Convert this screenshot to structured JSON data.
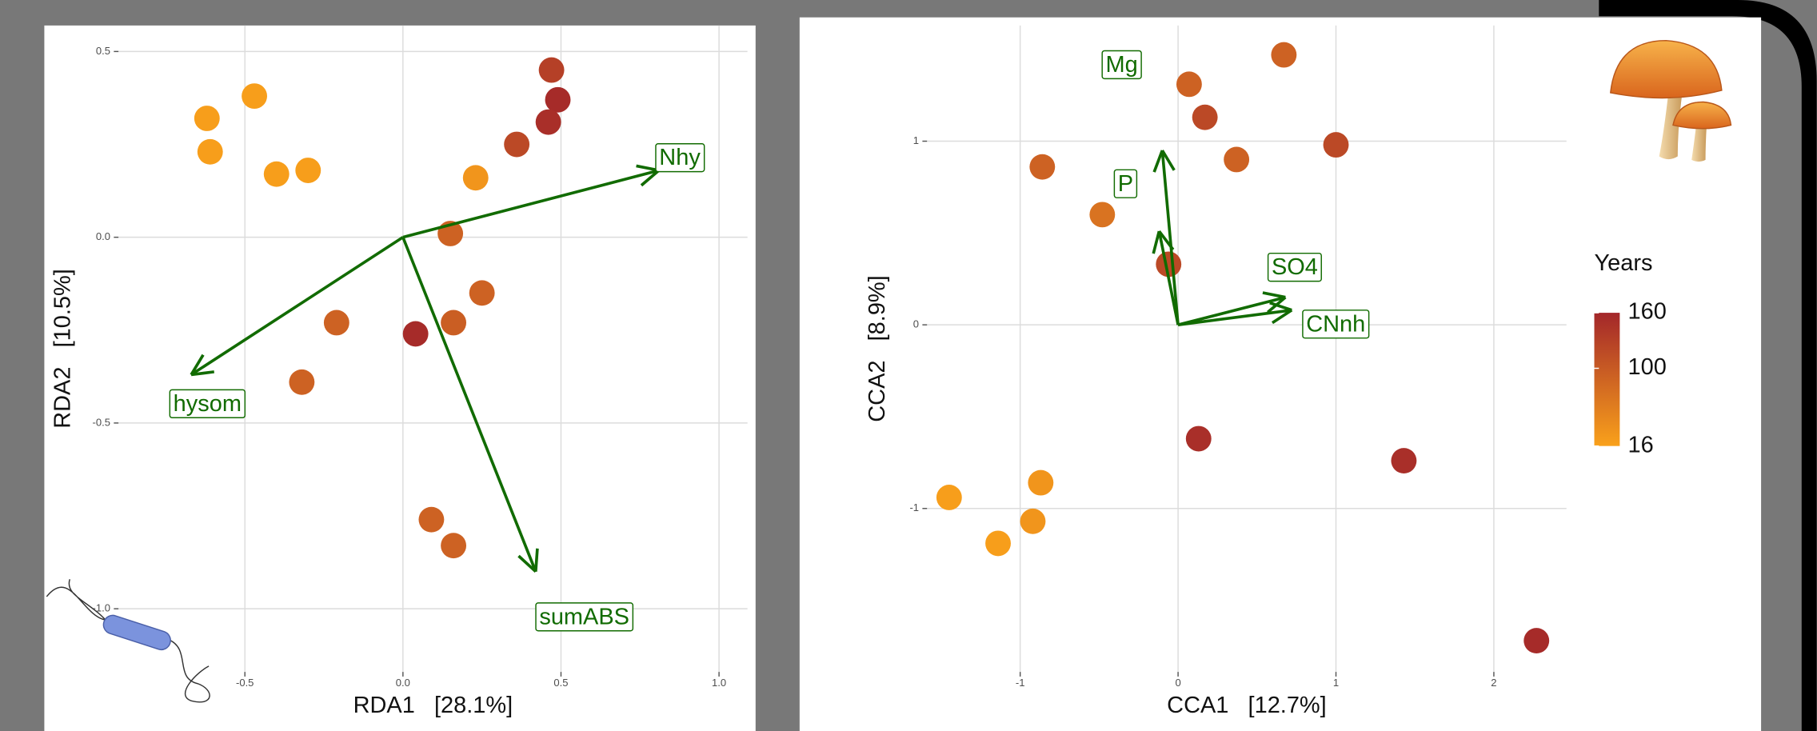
{
  "chart_data": [
    {
      "type": "scatter",
      "x_label": "RDA1   [28.1%]",
      "y_label": "RDA2   [10.5%]",
      "x": [
        -0.62,
        -0.61,
        -0.47,
        -0.4,
        -0.3,
        0.47,
        0.49,
        0.46,
        0.36,
        0.23,
        0.15,
        0.25,
        -0.21,
        0.16,
        0.04,
        -0.32,
        0.09,
        0.16
      ],
      "y": [
        0.32,
        0.23,
        0.38,
        0.17,
        0.18,
        0.45,
        0.37,
        0.31,
        0.25,
        0.16,
        0.01,
        -0.15,
        -0.23,
        -0.23,
        -0.26,
        -0.39,
        -0.76,
        -0.83
      ],
      "years": [
        20,
        20,
        20,
        20,
        20,
        130,
        155,
        150,
        120,
        30,
        90,
        90,
        90,
        95,
        155,
        90,
        90,
        90
      ],
      "xlim": [
        -0.9,
        1.09
      ],
      "ylim": [
        -1.17,
        0.57
      ],
      "xticks": [
        -0.5,
        {
          "value": 0,
          "label": "0.0"
        },
        0.5,
        {
          "value": 1,
          "label": "1.0"
        }
      ],
      "yticks": [
        0.5,
        {
          "value": 0,
          "label": "0.0"
        },
        -0.5,
        {
          "value": -1,
          "label": "-1.0"
        }
      ],
      "grid": true,
      "arrow_color": "#116b00",
      "arrows": [
        {
          "label": "Nhy",
          "x": 0.81,
          "y": 0.18
        },
        {
          "label": "hysom",
          "x": -0.67,
          "y": -0.37
        },
        {
          "label": "sumABS",
          "x": 0.42,
          "y": -0.9
        }
      ]
    },
    {
      "type": "scatter",
      "x_label": "CCA1   [12.7%]",
      "y_label": "CCA2   [8.9%]",
      "x": [
        0.67,
        0.07,
        0.17,
        0.37,
        1.0,
        -0.86,
        -0.48,
        -0.06,
        0.13,
        1.43,
        2.27,
        -1.45,
        -0.87,
        -0.92,
        -1.14
      ],
      "y": [
        1.47,
        1.31,
        1.13,
        0.9,
        0.98,
        0.86,
        0.6,
        0.33,
        -0.62,
        -0.74,
        -1.72,
        -0.94,
        -0.86,
        -1.07,
        -1.19
      ],
      "years": [
        90,
        90,
        120,
        90,
        120,
        90,
        70,
        120,
        150,
        150,
        155,
        20,
        30,
        30,
        20
      ],
      "xlim": [
        -1.59,
        2.46
      ],
      "ylim": [
        -1.89,
        1.63
      ],
      "xticks": [
        -1,
        0,
        1,
        2
      ],
      "yticks": [
        1,
        0,
        -1
      ],
      "grid": true,
      "arrow_color": "#116b00",
      "arrows": [
        {
          "label": "Mg",
          "x": -0.1,
          "y": 0.95
        },
        {
          "label": "P",
          "x": -0.12,
          "y": 0.51
        },
        {
          "label": "SO4",
          "x": 0.68,
          "y": 0.15
        },
        {
          "label": "CNnh",
          "x": 0.72,
          "y": 0.08
        }
      ],
      "legend": {
        "title": "Years",
        "lim": [
          16,
          160
        ],
        "ticks": [
          16,
          100,
          160
        ],
        "colors": [
          "#f9a11b",
          "#a3272a"
        ]
      }
    }
  ]
}
